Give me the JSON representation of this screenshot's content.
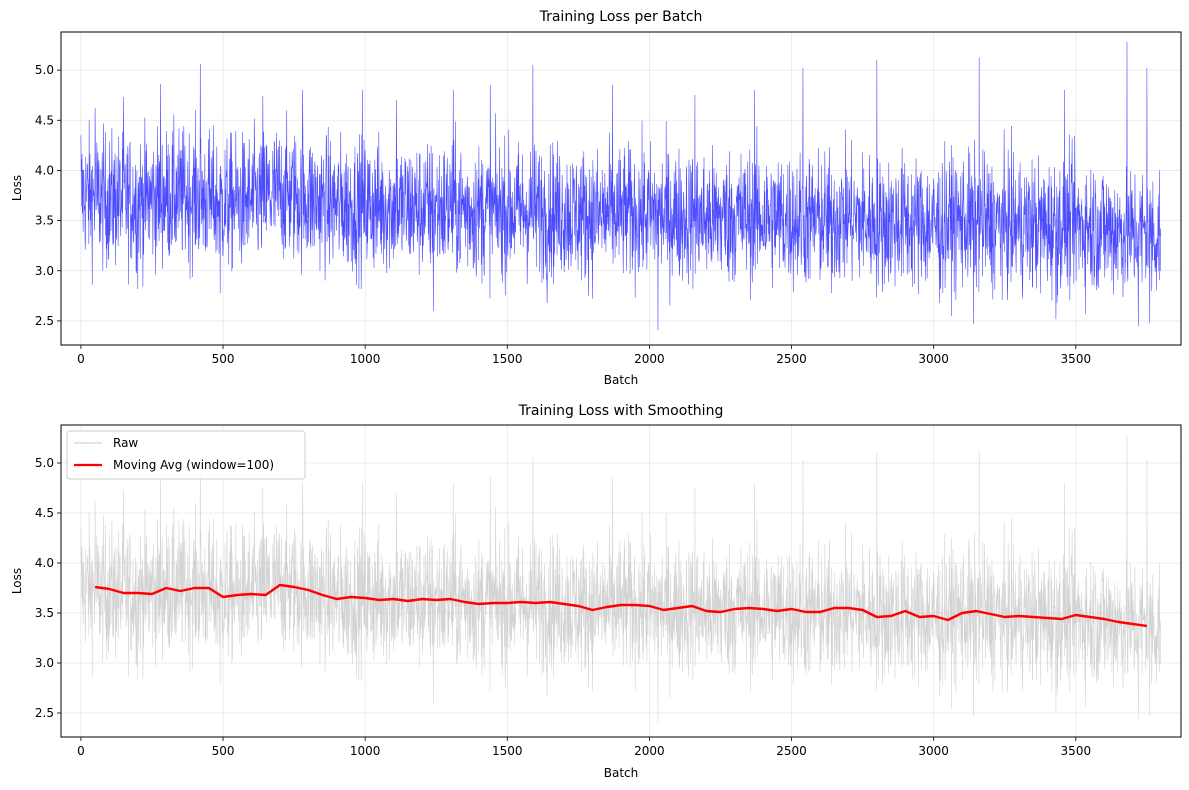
{
  "chart_data": [
    {
      "type": "line",
      "title": "Training Loss per Batch",
      "xlabel": "Batch",
      "ylabel": "Loss",
      "xlim": [
        -70,
        3870
      ],
      "ylim": [
        2.26,
        5.38
      ],
      "xticks": [
        0,
        500,
        1000,
        1500,
        2000,
        2500,
        3000,
        3500
      ],
      "yticks": [
        2.5,
        3.0,
        3.5,
        4.0,
        4.5,
        5.0
      ],
      "grid": true,
      "series": [
        {
          "name": "",
          "color": "#0000ff",
          "alpha": 0.7,
          "n_points": 3800,
          "x": [
            0,
            100,
            200,
            300,
            400,
            500,
            600,
            700,
            800,
            900,
            1000,
            1100,
            1200,
            1300,
            1400,
            1500,
            1600,
            1700,
            1800,
            1900,
            2000,
            2100,
            2200,
            2300,
            2400,
            2500,
            2600,
            2700,
            2800,
            2900,
            3000,
            3100,
            3200,
            3300,
            3400,
            3500,
            3600,
            3700,
            3790
          ],
          "y_center": [
            3.76,
            3.7,
            3.7,
            3.74,
            3.75,
            3.66,
            3.69,
            3.78,
            3.72,
            3.65,
            3.65,
            3.64,
            3.62,
            3.63,
            3.6,
            3.6,
            3.6,
            3.59,
            3.54,
            3.57,
            3.56,
            3.55,
            3.52,
            3.54,
            3.54,
            3.51,
            3.5,
            3.54,
            3.46,
            3.49,
            3.45,
            3.5,
            3.47,
            3.45,
            3.44,
            3.47,
            3.42,
            3.38,
            3.37
          ],
          "peaks": [
            [
              0,
              4.35
            ],
            [
              50,
              4.62
            ],
            [
              150,
              4.73
            ],
            [
              280,
              4.86
            ],
            [
              420,
              5.06
            ],
            [
              640,
              4.74
            ],
            [
              780,
              4.8
            ],
            [
              990,
              4.8
            ],
            [
              1110,
              4.7
            ],
            [
              1310,
              4.8
            ],
            [
              1440,
              4.85
            ],
            [
              1590,
              5.05
            ],
            [
              1870,
              4.85
            ],
            [
              2160,
              4.75
            ],
            [
              2370,
              4.8
            ],
            [
              2540,
              5.02
            ],
            [
              2800,
              5.1
            ],
            [
              3160,
              5.12
            ],
            [
              3460,
              4.8
            ],
            [
              3680,
              5.28
            ],
            [
              3750,
              5.02
            ]
          ],
          "troughs": [
            [
              200,
              2.82
            ],
            [
              490,
              2.78
            ],
            [
              1240,
              2.6
            ],
            [
              1640,
              2.68
            ],
            [
              2030,
              2.41
            ],
            [
              2640,
              2.78
            ],
            [
              3020,
              2.68
            ],
            [
              3140,
              2.47
            ],
            [
              3430,
              2.52
            ],
            [
              3720,
              2.45
            ],
            [
              3760,
              2.48
            ]
          ]
        }
      ]
    },
    {
      "type": "line",
      "title": "Training Loss with Smoothing",
      "xlabel": "Batch",
      "ylabel": "Loss",
      "xlim": [
        -70,
        3870
      ],
      "ylim": [
        2.26,
        5.38
      ],
      "xticks": [
        0,
        500,
        1000,
        1500,
        2000,
        2500,
        3000,
        3500
      ],
      "yticks": [
        2.5,
        3.0,
        3.5,
        4.0,
        4.5,
        5.0
      ],
      "grid": true,
      "legend": "top-left",
      "series": [
        {
          "name": "Raw",
          "color": "#c8c8c8",
          "source": "same as chart 1"
        },
        {
          "name": "Moving Avg (window=100)",
          "color": "#ff0000",
          "x": [
            50,
            100,
            150,
            200,
            250,
            300,
            350,
            400,
            450,
            500,
            550,
            600,
            650,
            700,
            750,
            800,
            850,
            900,
            950,
            1000,
            1050,
            1100,
            1150,
            1200,
            1250,
            1300,
            1350,
            1400,
            1450,
            1500,
            1550,
            1600,
            1650,
            1700,
            1750,
            1800,
            1850,
            1900,
            1950,
            2000,
            2050,
            2100,
            2150,
            2200,
            2250,
            2300,
            2350,
            2400,
            2450,
            2500,
            2550,
            2600,
            2650,
            2700,
            2750,
            2800,
            2850,
            2900,
            2950,
            3000,
            3050,
            3100,
            3150,
            3200,
            3250,
            3300,
            3350,
            3400,
            3450,
            3500,
            3550,
            3600,
            3650,
            3700,
            3750
          ],
          "y": [
            3.76,
            3.74,
            3.7,
            3.7,
            3.69,
            3.75,
            3.72,
            3.75,
            3.75,
            3.66,
            3.68,
            3.69,
            3.68,
            3.78,
            3.76,
            3.73,
            3.68,
            3.64,
            3.66,
            3.65,
            3.63,
            3.64,
            3.62,
            3.64,
            3.63,
            3.64,
            3.61,
            3.59,
            3.6,
            3.6,
            3.61,
            3.6,
            3.61,
            3.59,
            3.57,
            3.53,
            3.56,
            3.58,
            3.58,
            3.57,
            3.53,
            3.55,
            3.57,
            3.52,
            3.51,
            3.54,
            3.55,
            3.54,
            3.52,
            3.54,
            3.51,
            3.51,
            3.55,
            3.55,
            3.53,
            3.46,
            3.47,
            3.52,
            3.46,
            3.47,
            3.43,
            3.5,
            3.52,
            3.49,
            3.46,
            3.47,
            3.46,
            3.45,
            3.44,
            3.48,
            3.46,
            3.44,
            3.41,
            3.39,
            3.37
          ]
        }
      ]
    }
  ]
}
